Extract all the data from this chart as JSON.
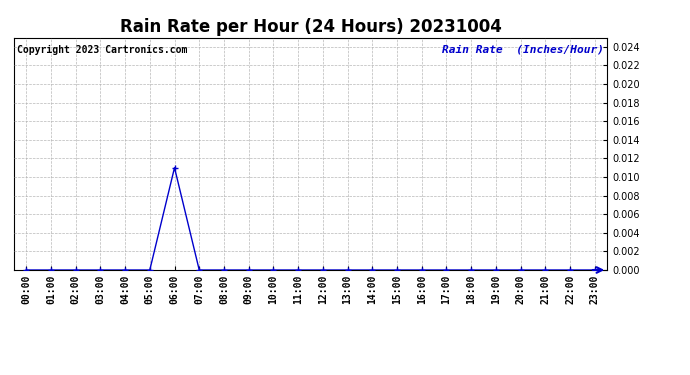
{
  "title": "Rain Rate per Hour (24 Hours) 20231004",
  "copyright_text": "Copyright 2023 Cartronics.com",
  "legend_text": "Rain Rate  (Inches/Hour)",
  "background_color": "#ffffff",
  "line_color": "#0000cc",
  "grid_color": "#b0b0b0",
  "hours": [
    0,
    1,
    2,
    3,
    4,
    5,
    6,
    7,
    8,
    9,
    10,
    11,
    12,
    13,
    14,
    15,
    16,
    17,
    18,
    19,
    20,
    21,
    22,
    23
  ],
  "values": [
    0,
    0,
    0,
    0,
    0,
    0,
    0.011,
    0,
    0,
    0,
    0,
    0,
    0,
    0,
    0,
    0,
    0,
    0,
    0,
    0,
    0,
    0,
    0,
    0
  ],
  "ylim": [
    0,
    0.025
  ],
  "yticks": [
    0.0,
    0.002,
    0.004,
    0.006,
    0.008,
    0.01,
    0.012,
    0.014,
    0.016,
    0.018,
    0.02,
    0.022,
    0.024
  ],
  "xtick_labels": [
    "00:00",
    "01:00",
    "02:00",
    "03:00",
    "04:00",
    "05:00",
    "06:00",
    "07:00",
    "08:00",
    "09:00",
    "10:00",
    "11:00",
    "12:00",
    "13:00",
    "14:00",
    "15:00",
    "16:00",
    "17:00",
    "18:00",
    "19:00",
    "20:00",
    "21:00",
    "22:00",
    "23:00"
  ],
  "title_fontsize": 12,
  "tick_fontsize": 7,
  "legend_fontsize": 8,
  "copyright_fontsize": 7
}
